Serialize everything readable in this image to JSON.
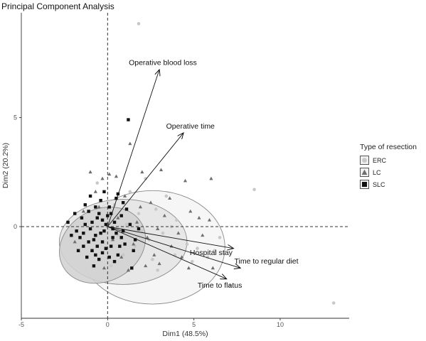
{
  "chart_data": {
    "type": "scatter",
    "title": "Principal Component Analysis",
    "xlabel": "Dim1 (48.5%)",
    "ylabel": "Dim2 (20.2%)",
    "xlim": [
      -5,
      14
    ],
    "ylim": [
      -4.2,
      9.8
    ],
    "xticks": [
      -5,
      0,
      5,
      10
    ],
    "yticks": [
      0,
      5
    ],
    "grid": false,
    "reference_lines": {
      "x": 0,
      "y": 0
    },
    "legend": {
      "title": "Type of resection",
      "position": "right"
    },
    "groups": [
      {
        "name": "ERC",
        "marker": "circle",
        "color": "#c8c8c8",
        "ellipse": {
          "center": [
            2.6,
            -0.95
          ],
          "radii": [
            4.2,
            2.6
          ],
          "fill": "#f4f4f4"
        },
        "points": [
          [
            1.8,
            9.3
          ],
          [
            8.5,
            1.7
          ],
          [
            13.1,
            -3.5
          ],
          [
            7.1,
            -2.7
          ],
          [
            6.5,
            -0.5
          ],
          [
            5.8,
            -1.4
          ],
          [
            2.9,
            -2.0
          ],
          [
            3.2,
            -0.3
          ],
          [
            4.0,
            0.3
          ],
          [
            2.2,
            2.2
          ],
          [
            1.3,
            1.6
          ],
          [
            3.9,
            -1.3
          ],
          [
            4.6,
            -0.8
          ],
          [
            0.6,
            -0.4
          ],
          [
            1.8,
            0.6
          ],
          [
            2.8,
            0.8
          ],
          [
            0.2,
            -1.8
          ],
          [
            3.7,
            0.0
          ],
          [
            2.4,
            -0.6
          ],
          [
            1.1,
            0.1
          ],
          [
            5.2,
            -1.0
          ],
          [
            -0.6,
            2.0
          ],
          [
            0.9,
            -1.3
          ],
          [
            2.6,
            -1.5
          ],
          [
            6.2,
            -1.1
          ],
          [
            3.4,
            1.4
          ],
          [
            1.6,
            -0.9
          ],
          [
            4.9,
            -1.6
          ],
          [
            0.4,
            1.0
          ],
          [
            2.0,
            -0.2
          ]
        ]
      },
      {
        "name": "LC",
        "marker": "triangle",
        "color": "#6e6e6e",
        "ellipse": {
          "center": [
            0.9,
            -0.7
          ],
          "radii": [
            3.7,
            1.95
          ],
          "fill": "#e4e4e4"
        },
        "points": [
          [
            1.3,
            3.8
          ],
          [
            6.0,
            2.2
          ],
          [
            4.5,
            2.1
          ],
          [
            3.1,
            2.6
          ],
          [
            -1.0,
            2.5
          ],
          [
            0.5,
            2.3
          ],
          [
            5.3,
            0.4
          ],
          [
            6.1,
            -1.9
          ],
          [
            4.1,
            -0.3
          ],
          [
            2.3,
            -0.5
          ],
          [
            1.0,
            1.4
          ],
          [
            -0.2,
            -1.9
          ],
          [
            2.7,
            -1.3
          ],
          [
            3.7,
            -0.9
          ],
          [
            0.1,
            2.4
          ],
          [
            4.7,
            -1.9
          ],
          [
            5.5,
            -0.4
          ],
          [
            -0.7,
            1.6
          ],
          [
            2.2,
            -1.8
          ],
          [
            3.3,
            0.5
          ],
          [
            0.8,
            -1.4
          ],
          [
            1.9,
            0.9
          ],
          [
            -1.4,
            0.7
          ],
          [
            5.9,
            0.3
          ],
          [
            2.9,
            -0.1
          ],
          [
            -0.3,
            2.2
          ],
          [
            1.5,
            -0.8
          ],
          [
            4.3,
            -1.4
          ],
          [
            0.6,
            0.4
          ],
          [
            -0.9,
            -1.1
          ],
          [
            3.6,
            1.3
          ],
          [
            2.5,
            1.1
          ],
          [
            1.2,
            -2.0
          ],
          [
            -1.9,
            -0.7
          ],
          [
            4.8,
            0.7
          ],
          [
            0.3,
            -0.6
          ],
          [
            2.0,
            2.5
          ],
          [
            3.0,
            -1.7
          ],
          [
            -0.5,
            0.9
          ],
          [
            1.7,
            0.2
          ]
        ]
      },
      {
        "name": "SLC",
        "marker": "square",
        "color": "#111111",
        "ellipse": {
          "center": [
            -0.3,
            -0.85
          ],
          "radii": [
            2.6,
            1.65
          ],
          "angle": -28,
          "fill": "#d0d0d0"
        },
        "points": [
          [
            1.2,
            4.9
          ],
          [
            1.4,
            -1.9
          ],
          [
            -0.7,
            -0.4
          ],
          [
            0.5,
            -0.3
          ],
          [
            -1.3,
            0.1
          ],
          [
            0.2,
            -0.9
          ],
          [
            -0.9,
            -1.1
          ],
          [
            -0.3,
            0.3
          ],
          [
            0.8,
            0.5
          ],
          [
            -1.6,
            -0.5
          ],
          [
            0.1,
            0.9
          ],
          [
            -0.5,
            -1.5
          ],
          [
            1.0,
            -0.8
          ],
          [
            -1.1,
            0.7
          ],
          [
            -0.2,
            -0.2
          ],
          [
            0.4,
            0.2
          ],
          [
            -0.8,
            -0.6
          ],
          [
            -1.4,
            -0.9
          ],
          [
            0.6,
            -1.3
          ],
          [
            -0.4,
            1.2
          ],
          [
            1.3,
            0.1
          ],
          [
            -1.8,
            -0.2
          ],
          [
            -0.6,
            0.4
          ],
          [
            0.3,
            -0.5
          ],
          [
            -0.1,
            -1.0
          ],
          [
            -1.0,
            -0.1
          ],
          [
            0.9,
            -0.2
          ],
          [
            -0.7,
            0.9
          ],
          [
            -1.2,
            -1.4
          ],
          [
            0.0,
            0.5
          ],
          [
            -0.3,
            -0.7
          ],
          [
            1.6,
            -0.6
          ],
          [
            -1.5,
            0.4
          ],
          [
            0.7,
            -0.9
          ],
          [
            -0.9,
            0.2
          ],
          [
            -0.2,
            1.6
          ],
          [
            0.4,
            -1.6
          ],
          [
            -1.7,
            -1.1
          ],
          [
            1.1,
            0.8
          ],
          [
            -0.6,
            -0.9
          ],
          [
            -1.3,
            1.0
          ],
          [
            0.2,
            0.6
          ],
          [
            -0.4,
            -0.3
          ],
          [
            0.8,
            -0.5
          ],
          [
            -2.1,
            -0.4
          ],
          [
            -0.8,
            -1.8
          ],
          [
            0.5,
            1.3
          ],
          [
            1.5,
            -1.1
          ],
          [
            -1.1,
            -0.7
          ],
          [
            -0.1,
            0.1
          ],
          [
            -0.5,
            0.6
          ],
          [
            0.3,
            -0.1
          ],
          [
            -1.4,
            -0.3
          ],
          [
            -0.7,
            -1.3
          ],
          [
            0.1,
            -1.4
          ],
          [
            -2.3,
            0.2
          ],
          [
            0.6,
            1.5
          ],
          [
            -1.9,
            0.6
          ],
          [
            1.8,
            -0.1
          ],
          [
            -0.3,
            -1.2
          ],
          [
            0.9,
            1.1
          ],
          [
            -1.0,
            1.4
          ]
        ]
      }
    ],
    "variable_arrows": [
      {
        "name": "Operative blood loss",
        "x": 3.0,
        "y": 7.2,
        "label_pos": [
          3.2,
          7.4
        ]
      },
      {
        "name": "Operative time",
        "x": 4.4,
        "y": 4.3,
        "label_pos": [
          4.8,
          4.5
        ]
      },
      {
        "name": "Hospital stay",
        "x": 7.3,
        "y": -1.0,
        "label_pos": [
          6.0,
          -1.3
        ]
      },
      {
        "name": "Time to regular diet",
        "x": 7.7,
        "y": -1.9,
        "label_pos": [
          9.2,
          -1.7
        ]
      },
      {
        "name": "Time to flatus",
        "x": 6.9,
        "y": -2.4,
        "label_pos": [
          6.5,
          -2.8
        ]
      }
    ]
  }
}
